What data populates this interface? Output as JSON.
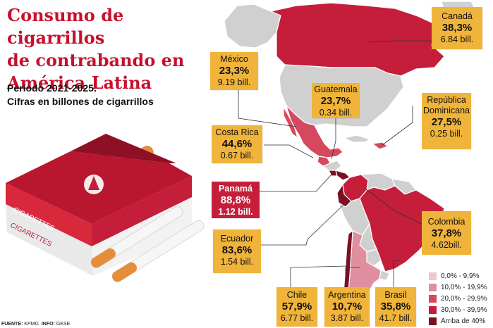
{
  "header": {
    "title": "Consumo de cigarrillos\nde contrabando en\nAmérica Latina",
    "subtitle_line1": "Período 2021-2025.",
    "subtitle_line2": "Cifras en billones de cigarrillos"
  },
  "illustration": {
    "pack_brand": "CIGARETTES"
  },
  "callouts": [
    {
      "id": "canada",
      "name": "Canadá",
      "pct": "38,3%",
      "amount": "6.84 bill.",
      "bin": 3
    },
    {
      "id": "mexico",
      "name": "México",
      "pct": "23,3%",
      "amount": "9.19 bill.",
      "bin": 2
    },
    {
      "id": "guatemala",
      "name": "Guatemala",
      "pct": "23,7%",
      "amount": "0.34 bill.",
      "bin": 2
    },
    {
      "id": "republica-dominicana",
      "name": "República\nDominicana",
      "pct": "27,5%",
      "amount": "0.25 bill.",
      "bin": 2
    },
    {
      "id": "costa-rica",
      "name": "Costa Rica",
      "pct": "44,6%",
      "amount": "0.67 bill.",
      "bin": 4
    },
    {
      "id": "panama",
      "name": "Panamá",
      "pct": "88,8%",
      "amount": "1.12 bill.",
      "bin": 4,
      "highlight": true
    },
    {
      "id": "colombia",
      "name": "Colombia",
      "pct": "37,8%",
      "amount": "4.62bill.",
      "bin": 3
    },
    {
      "id": "ecuador",
      "name": "Ecuador",
      "pct": "83,6%",
      "amount": "1.54 bill.",
      "bin": 4
    },
    {
      "id": "chile",
      "name": "Chile",
      "pct": "57,9%",
      "amount": "6.77 bill.",
      "bin": 4
    },
    {
      "id": "argentina",
      "name": "Argentina",
      "pct": "10,7%",
      "amount": "3.87 bill.",
      "bin": 1
    },
    {
      "id": "brasil",
      "name": "Brasil",
      "pct": "35,8%",
      "amount": "41.7 bill.",
      "bin": 3
    }
  ],
  "legend": [
    {
      "label": "0,0% - 9,9%",
      "color": "#f2c6cf"
    },
    {
      "label": "10,0% - 19,9%",
      "color": "#df8f9f"
    },
    {
      "label": "20,0% - 29,9%",
      "color": "#d4495e"
    },
    {
      "label": "30,0% - 39,9%",
      "color": "#c41e3a"
    },
    {
      "label": "Arriba de 40%",
      "color": "#7a1020"
    }
  ],
  "colors": {
    "title": "#c8102e",
    "callout": "#f0b43a",
    "callout_highlight": "#c41e3a",
    "land_no_data": "#d0d0d0",
    "border": "#ffffff"
  },
  "footer": {
    "source_label": "FUENTE:",
    "source": "KPMG",
    "info_label": "INFO:",
    "info": "GESE"
  }
}
